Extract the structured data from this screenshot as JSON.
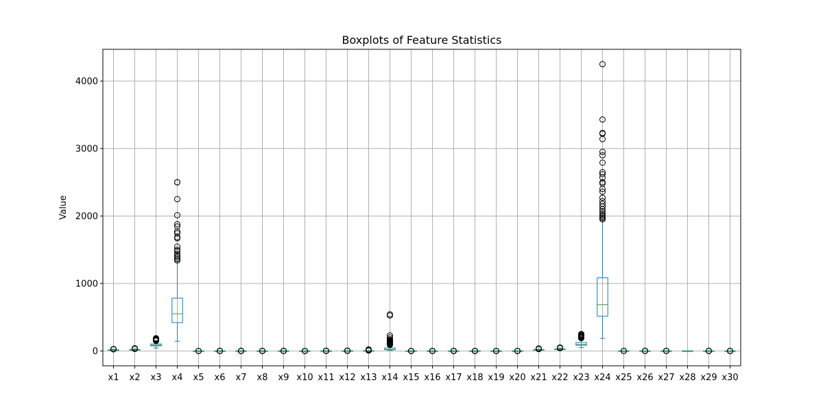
{
  "chart_data": {
    "type": "box",
    "title": "Boxplots of Feature Statistics",
    "xlabel": "",
    "ylabel": "Value",
    "ylim": [
      -220,
      4470
    ],
    "yticks": [
      0,
      1000,
      2000,
      3000,
      4000
    ],
    "ytick_labels": [
      "0",
      "1000",
      "2000",
      "3000",
      "4000"
    ],
    "grid": true,
    "colors": {
      "box": "#1f77b4",
      "median": "#2ca02c",
      "flier": "#000000",
      "grid": "#b0b0b0"
    },
    "categories": [
      "x1",
      "x2",
      "x3",
      "x4",
      "x5",
      "x6",
      "x7",
      "x8",
      "x9",
      "x10",
      "x11",
      "x12",
      "x13",
      "x14",
      "x15",
      "x16",
      "x17",
      "x18",
      "x19",
      "x20",
      "x21",
      "x22",
      "x23",
      "x24",
      "x25",
      "x26",
      "x27",
      "x28",
      "x29",
      "x30"
    ],
    "boxes": [
      {
        "name": "x1",
        "whislo": 6,
        "q1": 11,
        "med": 13,
        "q3": 16,
        "whishi": 24,
        "fliers": [
          25,
          26,
          27,
          28
        ]
      },
      {
        "name": "x2",
        "whislo": 10,
        "q1": 16,
        "med": 18,
        "q3": 21,
        "whishi": 30,
        "fliers": [
          31,
          33,
          36,
          39
        ]
      },
      {
        "name": "x3",
        "whislo": 43,
        "q1": 75,
        "med": 86,
        "q3": 104,
        "whishi": 147,
        "fliers": [
          150,
          155,
          160,
          165,
          170,
          175,
          180,
          188
        ]
      },
      {
        "name": "x4",
        "whislo": 143,
        "q1": 420,
        "med": 551,
        "q3": 783,
        "whishi": 1326,
        "fliers": [
          1341,
          1362,
          1386,
          1410,
          1440,
          1480,
          1500,
          1546,
          1669,
          1686,
          1744,
          1770,
          1844,
          1878,
          2011,
          2250,
          2499,
          2501
        ]
      },
      {
        "name": "x5",
        "whislo": 0.05,
        "q1": 0.086,
        "med": 0.096,
        "q3": 0.105,
        "whishi": 0.13,
        "fliers": [
          0.14,
          0.16
        ]
      },
      {
        "name": "x6",
        "whislo": 0.02,
        "q1": 0.065,
        "med": 0.093,
        "q3": 0.13,
        "whishi": 0.23,
        "fliers": [
          0.25,
          0.29,
          0.35
        ]
      },
      {
        "name": "x7",
        "whislo": 0,
        "q1": 0.03,
        "med": 0.06,
        "q3": 0.13,
        "whishi": 0.28,
        "fliers": [
          0.3,
          0.35,
          0.43
        ]
      },
      {
        "name": "x8",
        "whislo": 0,
        "q1": 0.02,
        "med": 0.034,
        "q3": 0.074,
        "whishi": 0.15,
        "fliers": [
          0.16,
          0.18,
          0.2
        ]
      },
      {
        "name": "x9",
        "whislo": 0.11,
        "q1": 0.16,
        "med": 0.18,
        "q3": 0.2,
        "whishi": 0.25,
        "fliers": [
          0.27,
          0.29,
          0.3
        ]
      },
      {
        "name": "x10",
        "whislo": 0.05,
        "q1": 0.058,
        "med": 0.062,
        "q3": 0.066,
        "whishi": 0.08,
        "fliers": [
          0.085,
          0.09,
          0.097
        ]
      },
      {
        "name": "x11",
        "whislo": 0.11,
        "q1": 0.23,
        "med": 0.32,
        "q3": 0.48,
        "whishi": 0.85,
        "fliers": [
          0.9,
          1.1,
          1.5,
          2.9
        ]
      },
      {
        "name": "x12",
        "whislo": 0.36,
        "q1": 0.83,
        "med": 1.1,
        "q3": 1.47,
        "whishi": 2.4,
        "fliers": [
          2.6,
          3.0,
          3.6,
          4.9
        ]
      },
      {
        "name": "x13",
        "whislo": 0.76,
        "q1": 1.6,
        "med": 2.3,
        "q3": 3.4,
        "whishi": 5.9,
        "fliers": [
          6.3,
          8.0,
          10.0,
          12.0,
          14.0,
          16.0,
          18.0,
          21.9
        ]
      },
      {
        "name": "x14",
        "whislo": 6,
        "q1": 18,
        "med": 24,
        "q3": 45,
        "whishi": 86,
        "fliers": [
          90,
          95,
          100,
          105,
          110,
          115,
          120,
          125,
          130,
          135,
          140,
          150,
          160,
          175,
          200,
          230,
          525,
          542
        ]
      },
      {
        "name": "x15",
        "whislo": 0.002,
        "q1": 0.005,
        "med": 0.006,
        "q3": 0.008,
        "whishi": 0.012,
        "fliers": [
          0.014,
          0.02,
          0.031
        ]
      },
      {
        "name": "x16",
        "whislo": 0.002,
        "q1": 0.013,
        "med": 0.02,
        "q3": 0.032,
        "whishi": 0.06,
        "fliers": [
          0.07,
          0.09,
          0.135
        ]
      },
      {
        "name": "x17",
        "whislo": 0,
        "q1": 0.015,
        "med": 0.026,
        "q3": 0.042,
        "whishi": 0.08,
        "fliers": [
          0.09,
          0.15,
          0.4
        ]
      },
      {
        "name": "x18",
        "whislo": 0,
        "q1": 0.008,
        "med": 0.011,
        "q3": 0.015,
        "whishi": 0.025,
        "fliers": [
          0.03,
          0.04,
          0.053
        ]
      },
      {
        "name": "x19",
        "whislo": 0.008,
        "q1": 0.015,
        "med": 0.019,
        "q3": 0.023,
        "whishi": 0.035,
        "fliers": [
          0.04,
          0.06,
          0.079
        ]
      },
      {
        "name": "x20",
        "whislo": 0.001,
        "q1": 0.002,
        "med": 0.003,
        "q3": 0.005,
        "whishi": 0.008,
        "fliers": [
          0.01,
          0.015,
          0.03
        ]
      },
      {
        "name": "x21",
        "whislo": 7.9,
        "q1": 13,
        "med": 15,
        "q3": 19,
        "whishi": 27,
        "fliers": [
          28,
          30,
          32,
          34,
          36
        ]
      },
      {
        "name": "x22",
        "whislo": 12,
        "q1": 21,
        "med": 25,
        "q3": 30,
        "whishi": 42,
        "fliers": [
          43,
          45,
          47,
          49,
          50
        ]
      },
      {
        "name": "x23",
        "whislo": 50,
        "q1": 84,
        "med": 97,
        "q3": 125,
        "whishi": 187,
        "fliers": [
          190,
          195,
          200,
          205,
          210,
          215,
          220,
          230,
          240,
          251
        ]
      },
      {
        "name": "x24",
        "whislo": 185,
        "q1": 515,
        "med": 686,
        "q3": 1084,
        "whishi": 1937,
        "fliers": [
          1950,
          1970,
          1990,
          2010,
          2040,
          2070,
          2100,
          2140,
          2180,
          2220,
          2270,
          2360,
          2400,
          2480,
          2500,
          2570,
          2620,
          2650,
          2790,
          2900,
          2950,
          3140,
          3220,
          3230,
          3430,
          4250
        ]
      },
      {
        "name": "x25",
        "whislo": 0.07,
        "q1": 0.117,
        "med": 0.131,
        "q3": 0.146,
        "whishi": 0.19,
        "fliers": [
          0.2,
          0.22
        ]
      },
      {
        "name": "x26",
        "whislo": 0.03,
        "q1": 0.147,
        "med": 0.212,
        "q3": 0.339,
        "whishi": 0.62,
        "fliers": [
          0.7,
          0.9,
          1.06
        ]
      },
      {
        "name": "x27",
        "whislo": 0,
        "q1": 0.115,
        "med": 0.227,
        "q3": 0.383,
        "whishi": 0.78,
        "fliers": [
          0.8,
          1.0,
          1.25
        ]
      },
      {
        "name": "x28",
        "whislo": 0,
        "q1": 0.065,
        "med": 0.1,
        "q3": 0.161,
        "whishi": 0.29,
        "fliers": []
      },
      {
        "name": "x29",
        "whislo": 0.16,
        "q1": 0.25,
        "med": 0.28,
        "q3": 0.318,
        "whishi": 0.42,
        "fliers": [
          0.45,
          0.5,
          0.66
        ]
      },
      {
        "name": "x30",
        "whislo": 0.055,
        "q1": 0.071,
        "med": 0.08,
        "q3": 0.092,
        "whishi": 0.12,
        "fliers": [
          0.13,
          0.15,
          0.21
        ]
      }
    ]
  }
}
